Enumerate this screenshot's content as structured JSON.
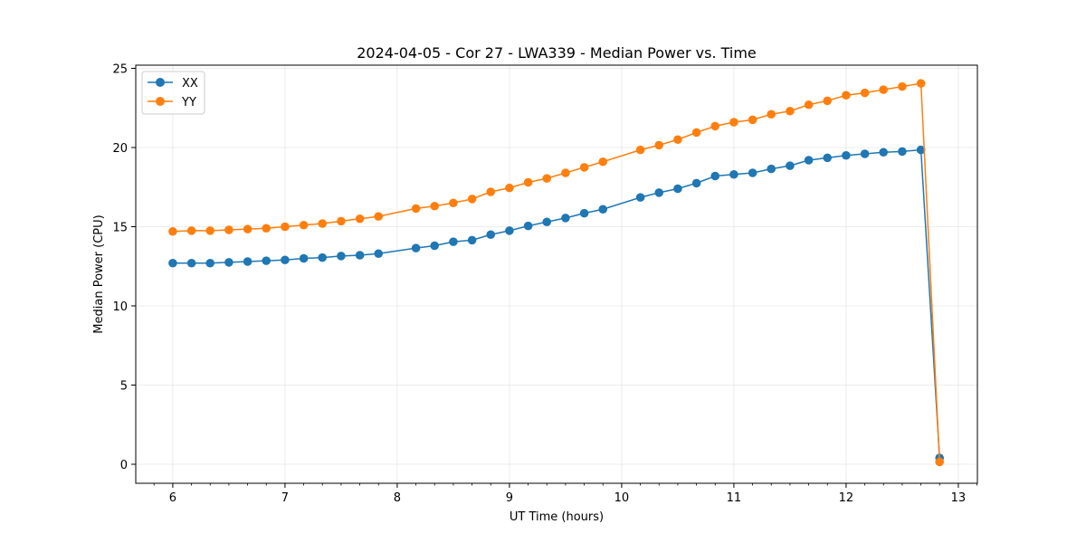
{
  "chart_data": {
    "type": "line",
    "title": "2024-04-05 - Cor 27 - LWA339 - Median Power vs. Time",
    "xlabel": "UT Time (hours)",
    "ylabel": "Median Power (CPU)",
    "xlim": [
      5.67,
      13.17
    ],
    "ylim": [
      -1.2,
      25.2
    ],
    "xticks": [
      6,
      7,
      8,
      9,
      10,
      11,
      12,
      13
    ],
    "yticks": [
      0,
      5,
      10,
      15,
      20,
      25
    ],
    "grid": true,
    "legend_position": "top-left",
    "series": [
      {
        "name": "XX",
        "color": "#1f77b4",
        "x": [
          6.0,
          6.167,
          6.333,
          6.5,
          6.667,
          6.833,
          7.0,
          7.167,
          7.333,
          7.5,
          7.667,
          7.833,
          8.167,
          8.333,
          8.5,
          8.667,
          8.833,
          9.0,
          9.167,
          9.333,
          9.5,
          9.667,
          9.833,
          10.167,
          10.333,
          10.5,
          10.667,
          10.833,
          11.0,
          11.167,
          11.333,
          11.5,
          11.667,
          11.833,
          12.0,
          12.167,
          12.333,
          12.5,
          12.667,
          12.833
        ],
        "y": [
          12.7,
          12.7,
          12.7,
          12.75,
          12.8,
          12.85,
          12.9,
          13.0,
          13.05,
          13.15,
          13.2,
          13.3,
          13.65,
          13.8,
          14.05,
          14.15,
          14.5,
          14.75,
          15.05,
          15.3,
          15.55,
          15.85,
          16.1,
          16.85,
          17.15,
          17.4,
          17.75,
          18.2,
          18.3,
          18.4,
          18.65,
          18.85,
          19.2,
          19.35,
          19.5,
          19.6,
          19.7,
          19.75,
          19.85,
          0.4
        ]
      },
      {
        "name": "YY",
        "color": "#ff7f0e",
        "x": [
          6.0,
          6.167,
          6.333,
          6.5,
          6.667,
          6.833,
          7.0,
          7.167,
          7.333,
          7.5,
          7.667,
          7.833,
          8.167,
          8.333,
          8.5,
          8.667,
          8.833,
          9.0,
          9.167,
          9.333,
          9.5,
          9.667,
          9.833,
          10.167,
          10.333,
          10.5,
          10.667,
          10.833,
          11.0,
          11.167,
          11.333,
          11.5,
          11.667,
          11.833,
          12.0,
          12.167,
          12.333,
          12.5,
          12.667,
          12.833
        ],
        "y": [
          14.7,
          14.75,
          14.75,
          14.8,
          14.85,
          14.9,
          15.0,
          15.1,
          15.2,
          15.35,
          15.5,
          15.65,
          16.15,
          16.3,
          16.5,
          16.75,
          17.2,
          17.45,
          17.8,
          18.05,
          18.4,
          18.75,
          19.1,
          19.85,
          20.15,
          20.5,
          20.95,
          21.35,
          21.6,
          21.75,
          22.1,
          22.3,
          22.7,
          22.95,
          23.3,
          23.45,
          23.65,
          23.85,
          24.05,
          0.15
        ]
      }
    ]
  }
}
